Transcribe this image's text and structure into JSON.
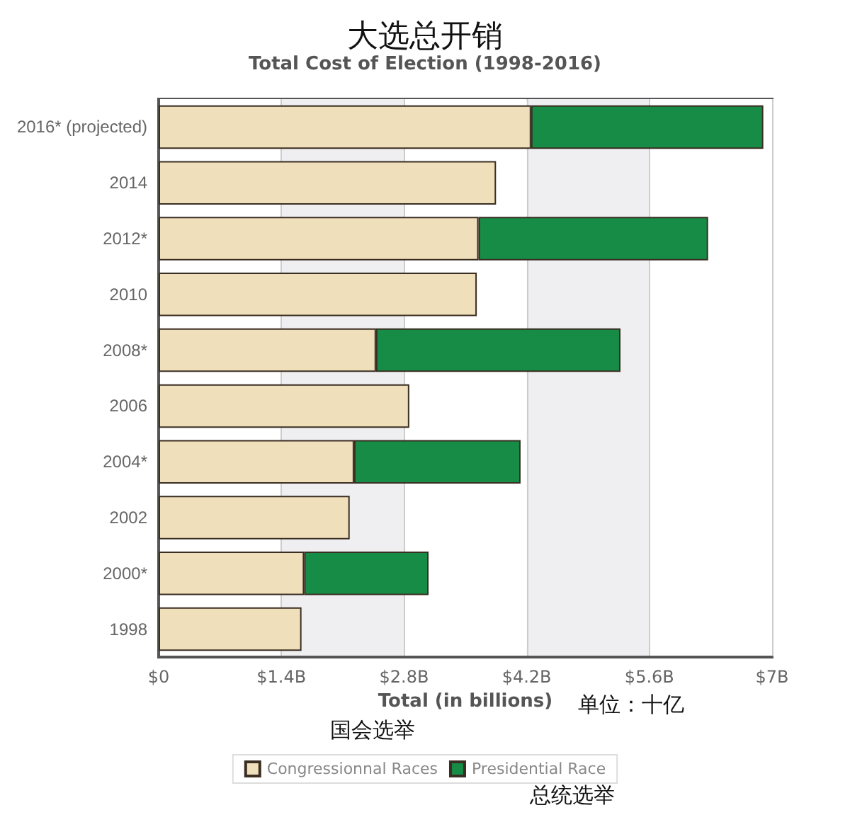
{
  "chart_data": {
    "type": "bar",
    "orientation": "horizontal",
    "stacked": true,
    "title": "大选总开销",
    "subtitle": "Total Cost of Election (1998-2016)",
    "xlabel": "Total (in billions)",
    "annotations": [
      "单位：十亿",
      "国会选举",
      "总统选举"
    ],
    "categories": [
      "2016* (projected)",
      "2014",
      "2012*",
      "2010",
      "2008*",
      "2006",
      "2004*",
      "2002",
      "2000*",
      "1998"
    ],
    "series": [
      {
        "name": "Congressionnal Races",
        "color": "#f0dfbb",
        "values": [
          4.25,
          3.85,
          3.65,
          3.63,
          2.48,
          2.86,
          2.23,
          2.18,
          1.66,
          1.63
        ]
      },
      {
        "name": "Presidential Race",
        "color": "#178c47",
        "values": [
          2.65,
          null,
          2.62,
          null,
          2.79,
          null,
          1.9,
          null,
          1.42,
          null
        ]
      }
    ],
    "xlim": [
      0,
      7
    ],
    "xticks": [
      {
        "value": 0,
        "label": "$0"
      },
      {
        "value": 1.4,
        "label": "$1.4B"
      },
      {
        "value": 2.8,
        "label": "$2.8B"
      },
      {
        "value": 4.2,
        "label": "$4.2B"
      },
      {
        "value": 5.6,
        "label": "$5.6B"
      },
      {
        "value": 7,
        "label": "$7B"
      }
    ],
    "grid": "x",
    "legend": "bottom"
  }
}
